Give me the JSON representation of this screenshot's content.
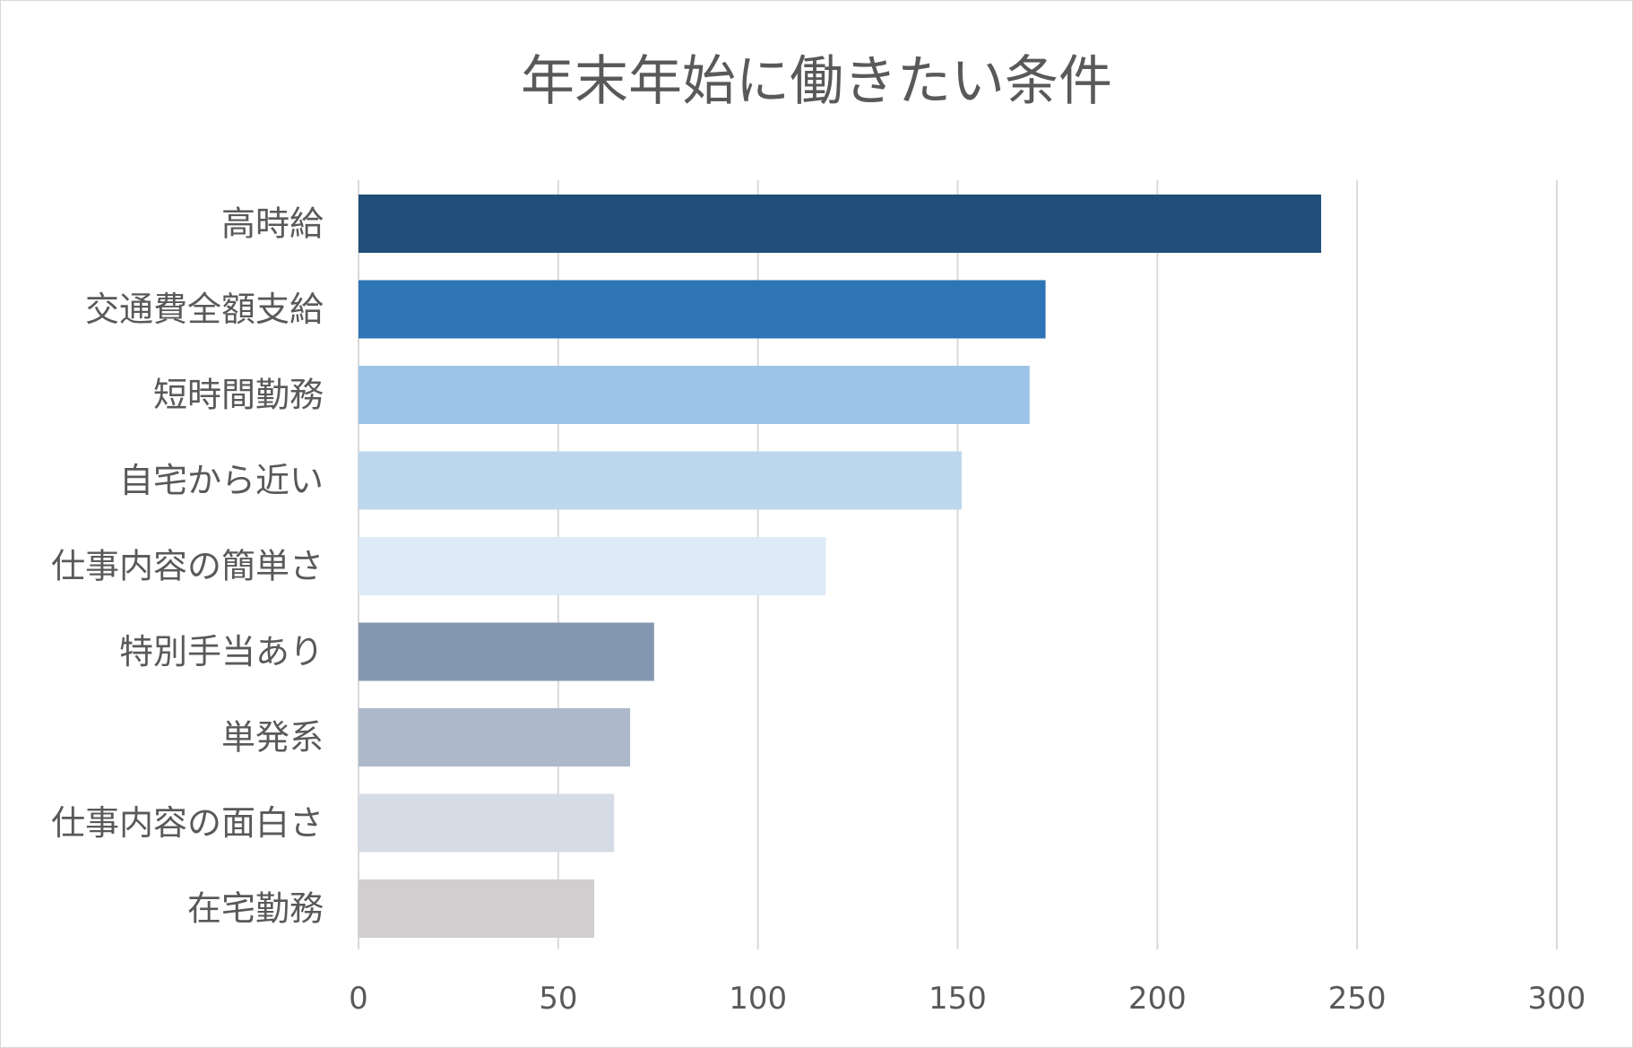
{
  "chart_data": {
    "type": "bar",
    "orientation": "horizontal",
    "title": "年末年始に働きたい条件",
    "xlabel": "",
    "ylabel": "",
    "categories": [
      "高時給",
      "交通費全額支給",
      "短時間勤務",
      "自宅から近い",
      "仕事内容の簡単さ",
      "特別手当あり",
      "単発系",
      "仕事内容の面白さ",
      "在宅勤務"
    ],
    "values": [
      241,
      172,
      168,
      151,
      117,
      74,
      68,
      64,
      59
    ],
    "colors": [
      "#1f4e79",
      "#2e75b6",
      "#9dc3e6",
      "#bdd7ee",
      "#deebf7",
      "#8497b0",
      "#adb9ca",
      "#d6dce5",
      "#d0cece"
    ],
    "xlim": [
      0,
      300
    ],
    "xticks": [
      0,
      50,
      100,
      150,
      200,
      250,
      300
    ],
    "grid": true,
    "legend": "none"
  }
}
